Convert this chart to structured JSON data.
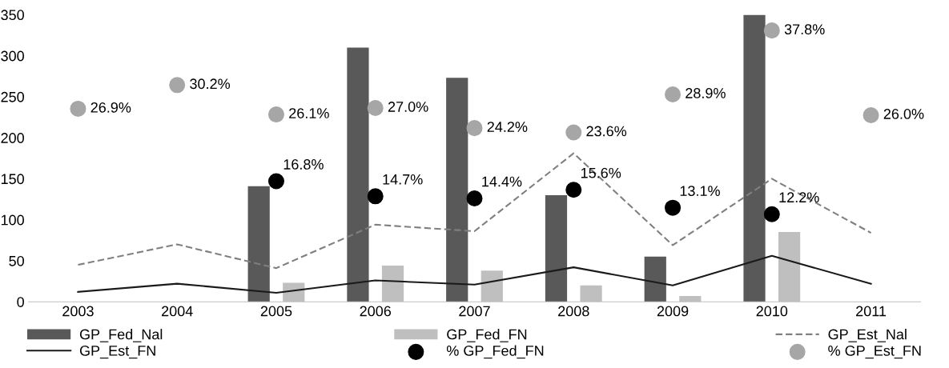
{
  "chart_data": {
    "type": "bar",
    "categories": [
      "2003",
      "2004",
      "2005",
      "2006",
      "2007",
      "2008",
      "2009",
      "2010",
      "2011"
    ],
    "ylim": [
      0,
      350
    ],
    "yticks": [
      0,
      50,
      100,
      150,
      200,
      250,
      300,
      350
    ],
    "y2lim": [
      0,
      40
    ],
    "grid": false,
    "legend": "bottom",
    "series": [
      {
        "name": "GP_Fed_Nal",
        "type": "bar",
        "color": "#595959",
        "values": [
          null,
          null,
          141,
          310,
          273,
          130,
          55,
          350,
          null
        ]
      },
      {
        "name": "GP_Fed_FN",
        "type": "bar",
        "color": "#bfbfbf",
        "values": [
          null,
          null,
          23,
          44,
          38,
          20,
          7,
          85,
          null
        ]
      },
      {
        "name": "GP_Est_Nal",
        "type": "line",
        "color": "#7f7f7f",
        "line_style": "dashed",
        "marker": "none",
        "values": [
          45,
          70,
          41,
          94,
          86,
          181,
          69,
          150,
          84
        ]
      },
      {
        "name": "GP_Est_FN",
        "type": "line",
        "color": "#1a1a1a",
        "line_style": "solid",
        "marker": "none",
        "values": [
          12,
          22,
          11,
          26,
          21,
          42,
          20,
          56,
          22
        ]
      },
      {
        "name": "% GP_Fed_FN",
        "type": "scatter",
        "axis": "y2",
        "color": "#000000",
        "marker": "circle",
        "values": [
          null,
          null,
          16.8,
          14.7,
          14.4,
          15.6,
          13.1,
          12.2,
          null
        ],
        "value_labels": [
          null,
          null,
          "16.8%",
          "14.7%",
          "14.4%",
          "15.6%",
          "13.1%",
          "12.2%",
          null
        ]
      },
      {
        "name": "% GP_Est_FN",
        "type": "scatter",
        "axis": "y2",
        "color": "#a6a6a6",
        "marker": "circle",
        "values": [
          26.9,
          30.2,
          26.1,
          27.0,
          24.2,
          23.6,
          28.9,
          37.8,
          26.0
        ],
        "value_labels": [
          "26.9%",
          "30.2%",
          "26.1%",
          "27.0%",
          "24.2%",
          "23.6%",
          "28.9%",
          "37.8%",
          "26.0%"
        ]
      }
    ]
  }
}
